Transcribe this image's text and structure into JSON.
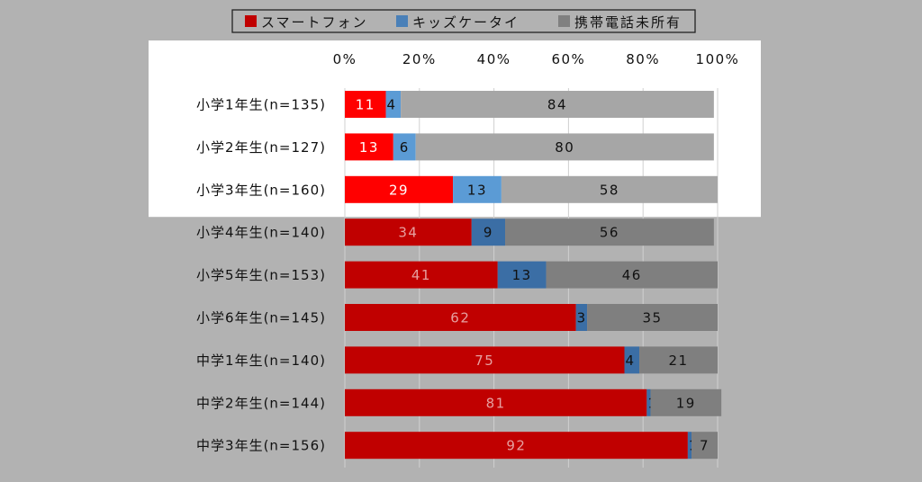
{
  "chart_data": {
    "type": "bar",
    "orientation": "horizontal",
    "stacked": true,
    "percent": true,
    "categories": [
      "小学1年生(n=135)",
      "小学2年生(n=127)",
      "小学3年生(n=160)",
      "小学4年生(n=140)",
      "小学5年生(n=153)",
      "小学6年生(n=145)",
      "中学1年生(n=140)",
      "中学2年生(n=144)",
      "中学3年生(n=156)"
    ],
    "series": [
      {
        "name": "スマートフォン",
        "values": [
          11,
          13,
          29,
          34,
          41,
          62,
          75,
          81,
          92
        ],
        "color": "#c00000",
        "highlight_color": "#ff0000",
        "label_color": "#e6a0a0",
        "highlight_label_color": "#ffffff"
      },
      {
        "name": "キッズケータイ",
        "values": [
          4,
          6,
          13,
          9,
          13,
          3,
          4,
          1,
          1
        ],
        "color": "#3b6ea5",
        "highlight_color": "#5b9bd5",
        "label_color": "#111111",
        "highlight_label_color": "#111111"
      },
      {
        "name": "携帯電話未所有",
        "values": [
          84,
          80,
          58,
          56,
          46,
          35,
          21,
          19,
          7
        ],
        "color": "#7f7f7f",
        "highlight_color": "#a6a6a6",
        "label_color": "#111111",
        "highlight_label_color": "#111111"
      }
    ],
    "highlighted_categories": [
      0,
      1,
      2
    ],
    "xlim": [
      0,
      100
    ],
    "x_ticks": [
      "0%",
      "20%",
      "40%",
      "60%",
      "80%",
      "100%"
    ],
    "legend_position": "top",
    "grid": true,
    "title": "",
    "xlabel": "",
    "ylabel": ""
  }
}
